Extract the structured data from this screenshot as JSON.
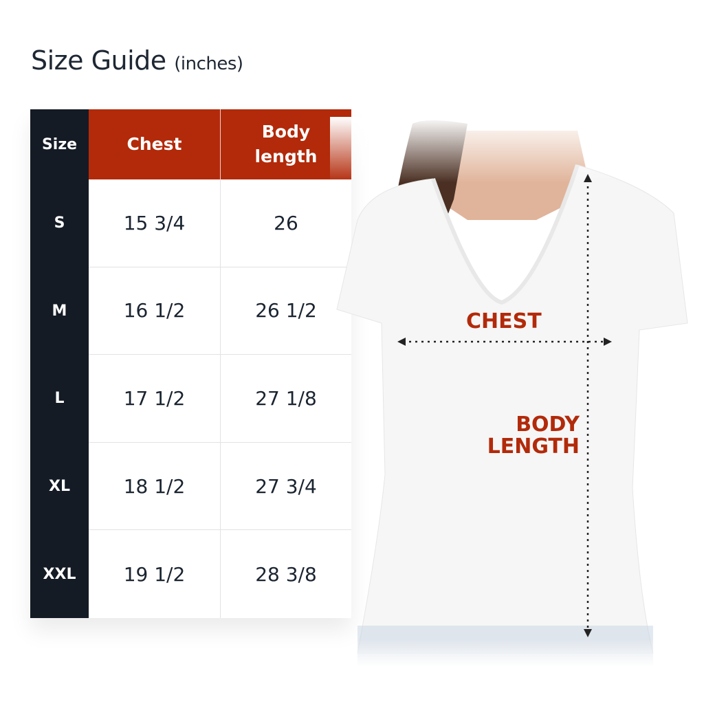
{
  "title": {
    "main": "Size Guide",
    "unit": "(inches)"
  },
  "table": {
    "headers": [
      "Size",
      "Chest",
      "Body length"
    ],
    "rows": [
      {
        "size": "S",
        "chest": "15 3/4",
        "length": "26"
      },
      {
        "size": "M",
        "chest": "16 1/2",
        "length": "26 1/2"
      },
      {
        "size": "L",
        "chest": "17 1/2",
        "length": "27 1/8"
      },
      {
        "size": "XL",
        "chest": "18 1/2",
        "length": "27 3/4"
      },
      {
        "size": "XXL",
        "chest": "19 1/2",
        "length": "28 3/8"
      }
    ]
  },
  "diagram": {
    "chest_label": "CHEST",
    "length_label_1": "BODY",
    "length_label_2": "LENGTH"
  },
  "colors": {
    "accent": "#b22a0a",
    "dark": "#141b24"
  }
}
